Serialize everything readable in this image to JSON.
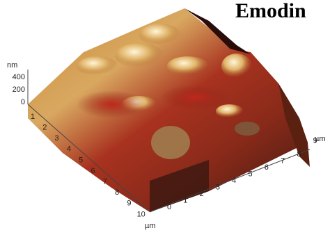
{
  "title": "Emodin",
  "z_axis": {
    "unit": "nm",
    "ticks": [
      "0",
      "200",
      "400"
    ]
  },
  "left_axis": {
    "ticks": [
      "1",
      "2",
      "3",
      "4",
      "5",
      "6",
      "7",
      "8",
      "9",
      "10"
    ],
    "unit": "µm"
  },
  "right_axis": {
    "ticks": [
      "0",
      "1",
      "2",
      "3",
      "4",
      "5",
      "6",
      "7",
      "8",
      "9"
    ],
    "unit": "µm"
  }
}
